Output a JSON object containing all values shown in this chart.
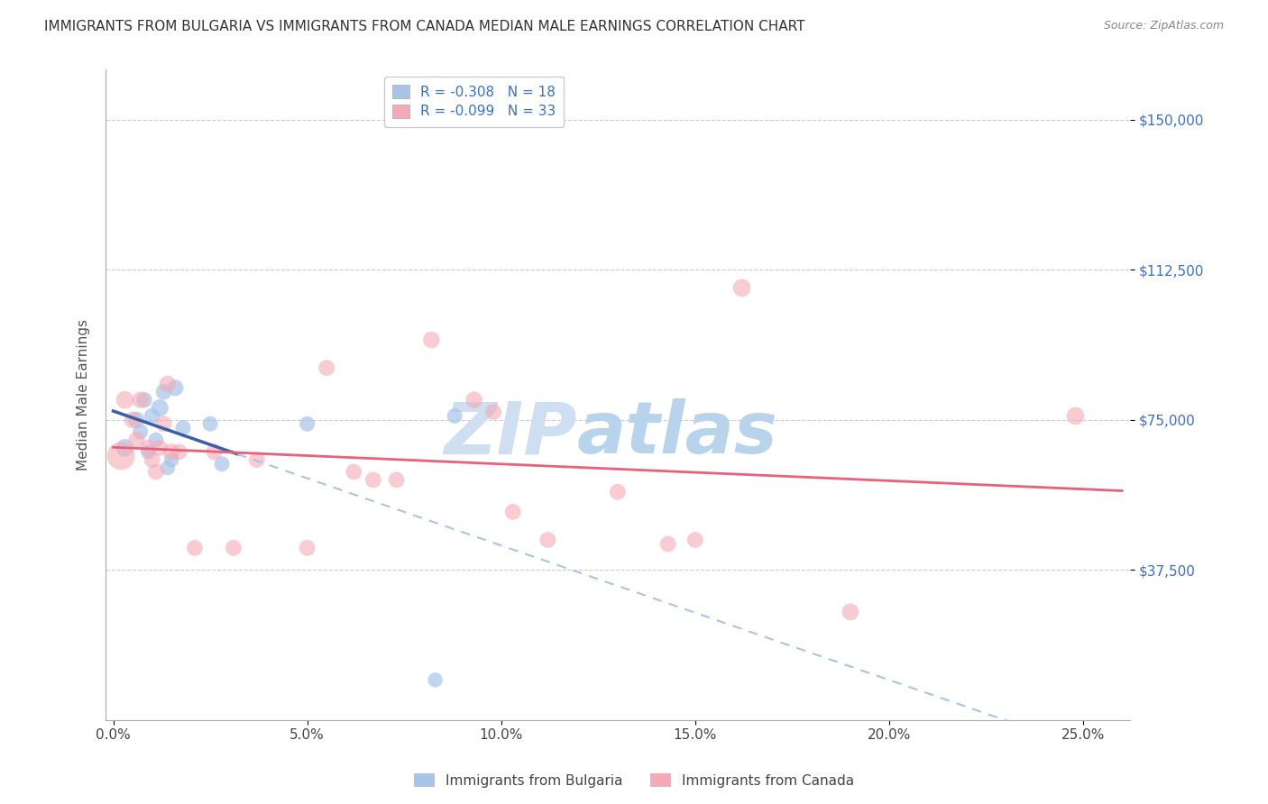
{
  "title": "IMMIGRANTS FROM BULGARIA VS IMMIGRANTS FROM CANADA MEDIAN MALE EARNINGS CORRELATION CHART",
  "source": "Source: ZipAtlas.com",
  "ylabel": "Median Male Earnings",
  "xlabel_ticks": [
    "0.0%",
    "5.0%",
    "10.0%",
    "15.0%",
    "20.0%",
    "25.0%"
  ],
  "xlabel_vals": [
    0.0,
    0.05,
    0.1,
    0.15,
    0.2,
    0.25
  ],
  "ytick_labels": [
    "$37,500",
    "$75,000",
    "$112,500",
    "$150,000"
  ],
  "ytick_vals": [
    37500,
    75000,
    112500,
    150000
  ],
  "ylim": [
    0,
    162500
  ],
  "xlim": [
    -0.002,
    0.262
  ],
  "bulgaria_color": "#a8c4e8",
  "canada_color": "#f5aab8",
  "bulgaria_line_color": "#3a5fa8",
  "canada_line_color": "#e8607a",
  "bulgaria_dashed_color": "#a8c4e8",
  "watermark_zip": "ZIP",
  "watermark_atlas": "atlas",
  "watermark_color_zip": "#c8ddf0",
  "watermark_color_atlas": "#c0d8f0",
  "legend_r1": "R = -0.308   N = 18",
  "legend_r2": "R = -0.099   N = 33",
  "legend_label1": "Immigrants from Bulgaria",
  "legend_label2": "Immigrants from Canada",
  "bulgaria_points": [
    [
      0.003,
      68000,
      200
    ],
    [
      0.006,
      75000,
      170
    ],
    [
      0.007,
      72000,
      150
    ],
    [
      0.008,
      80000,
      160
    ],
    [
      0.009,
      67000,
      140
    ],
    [
      0.01,
      76000,
      155
    ],
    [
      0.011,
      70000,
      145
    ],
    [
      0.012,
      78000,
      190
    ],
    [
      0.013,
      82000,
      160
    ],
    [
      0.014,
      63000,
      140
    ],
    [
      0.015,
      65000,
      140
    ],
    [
      0.016,
      83000,
      170
    ],
    [
      0.018,
      73000,
      150
    ],
    [
      0.025,
      74000,
      150
    ],
    [
      0.028,
      64000,
      150
    ],
    [
      0.05,
      74000,
      150
    ],
    [
      0.088,
      76000,
      150
    ],
    [
      0.083,
      10000,
      140
    ]
  ],
  "canada_points": [
    [
      0.002,
      66000,
      500
    ],
    [
      0.003,
      80000,
      200
    ],
    [
      0.005,
      75000,
      180
    ],
    [
      0.006,
      70000,
      175
    ],
    [
      0.007,
      80000,
      175
    ],
    [
      0.009,
      68000,
      170
    ],
    [
      0.01,
      65000,
      165
    ],
    [
      0.011,
      62000,
      165
    ],
    [
      0.012,
      68000,
      165
    ],
    [
      0.013,
      74000,
      165
    ],
    [
      0.014,
      84000,
      175
    ],
    [
      0.015,
      67000,
      175
    ],
    [
      0.017,
      67000,
      165
    ],
    [
      0.021,
      43000,
      165
    ],
    [
      0.026,
      67000,
      165
    ],
    [
      0.031,
      43000,
      165
    ],
    [
      0.037,
      65000,
      165
    ],
    [
      0.05,
      43000,
      165
    ],
    [
      0.055,
      88000,
      165
    ],
    [
      0.062,
      62000,
      165
    ],
    [
      0.067,
      60000,
      165
    ],
    [
      0.073,
      60000,
      165
    ],
    [
      0.082,
      95000,
      180
    ],
    [
      0.093,
      80000,
      180
    ],
    [
      0.098,
      77000,
      165
    ],
    [
      0.103,
      52000,
      165
    ],
    [
      0.112,
      45000,
      165
    ],
    [
      0.13,
      57000,
      165
    ],
    [
      0.143,
      44000,
      165
    ],
    [
      0.15,
      45000,
      165
    ],
    [
      0.162,
      108000,
      200
    ],
    [
      0.19,
      27000,
      180
    ],
    [
      0.248,
      76000,
      200
    ]
  ]
}
